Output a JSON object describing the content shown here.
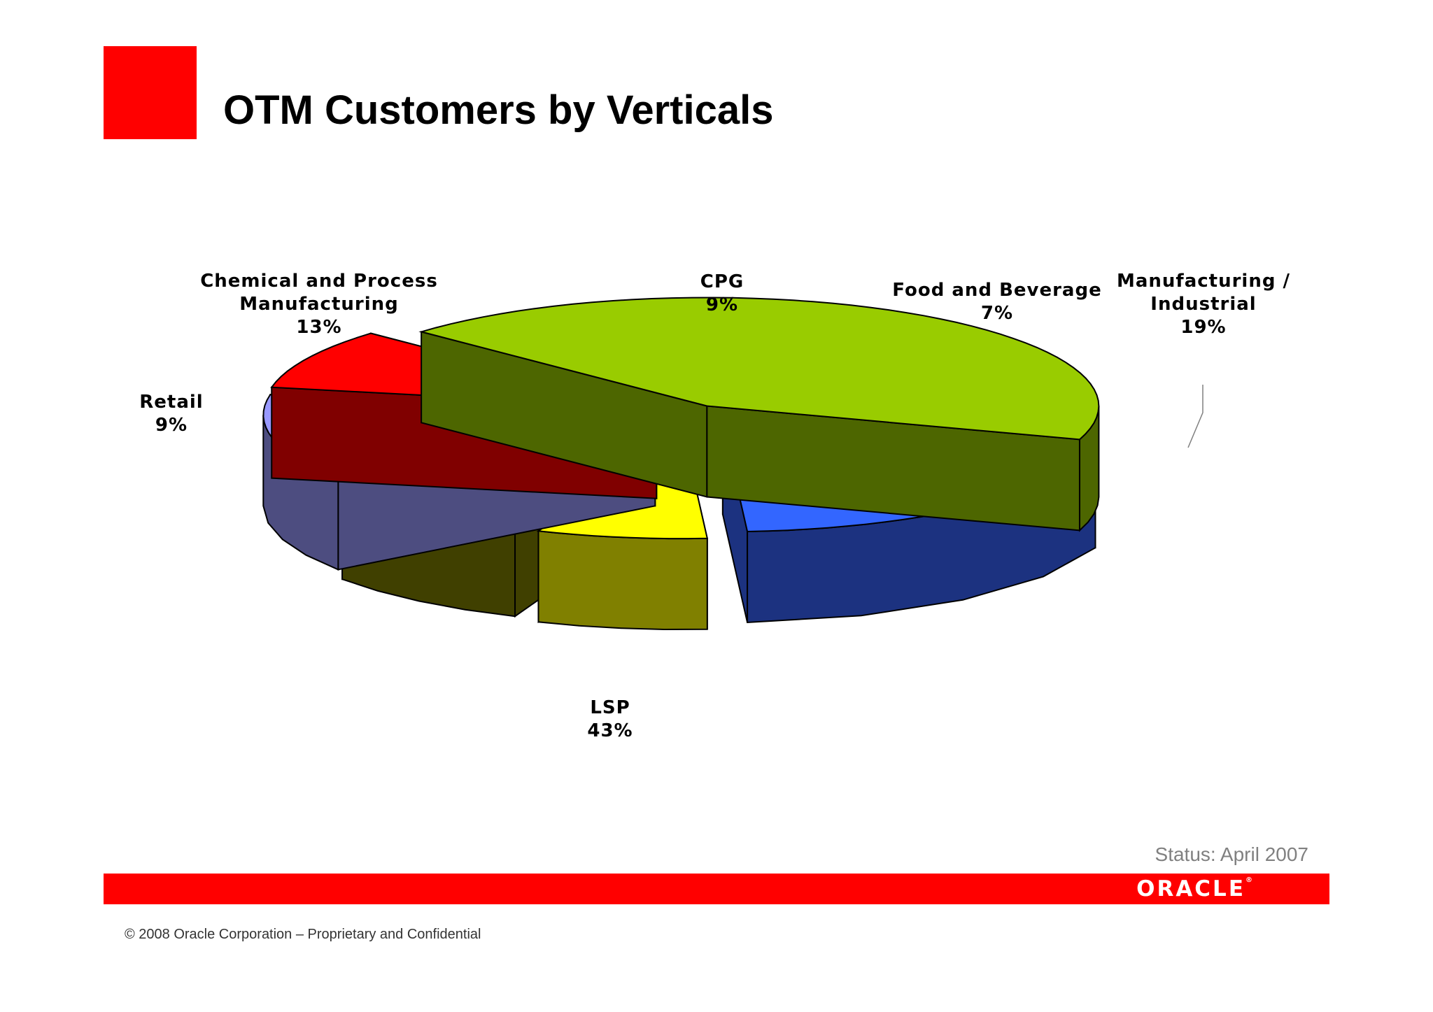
{
  "slide": {
    "title": "OTM Customers by Verticals",
    "status": "Status: April 2007",
    "logo": "ORACLE",
    "copyright": "© 2008 Oracle Corporation – Proprietary and Confidential",
    "brand_color": "#ff0000"
  },
  "chart_data": {
    "type": "pie",
    "style": "3d-exploded",
    "title": "",
    "categories": [
      "Chemical and Process Manufacturing",
      "CPG",
      "Food and Beverage",
      "Manufacturing / Industrial",
      "LSP",
      "Retail"
    ],
    "values": [
      13,
      9,
      7,
      19,
      43,
      9
    ],
    "unit": "%",
    "slices": [
      {
        "label_lines": [
          "Chemical and Process",
          "Manufacturing"
        ],
        "value": 13,
        "value_text": "13%",
        "color": "#9999ff",
        "side_color": "#4d4d80"
      },
      {
        "label_lines": [
          "CPG"
        ],
        "value": 9,
        "value_text": "9%",
        "color": "#808000",
        "side_color": "#404000"
      },
      {
        "label_lines": [
          "Food and Beverage"
        ],
        "value": 7,
        "value_text": "7%",
        "color": "#ffff00",
        "side_color": "#808000"
      },
      {
        "label_lines": [
          "Manufacturing /",
          "Industrial"
        ],
        "value": 19,
        "value_text": "19%",
        "color": "#3366ff",
        "side_color": "#1c3280"
      },
      {
        "label_lines": [
          "LSP"
        ],
        "value": 43,
        "value_text": "43%",
        "color": "#99cc00",
        "side_color": "#4d6600"
      },
      {
        "label_lines": [
          "Retail"
        ],
        "value": 9,
        "value_text": "9%",
        "color": "#ff0000",
        "side_color": "#800000"
      }
    ]
  }
}
